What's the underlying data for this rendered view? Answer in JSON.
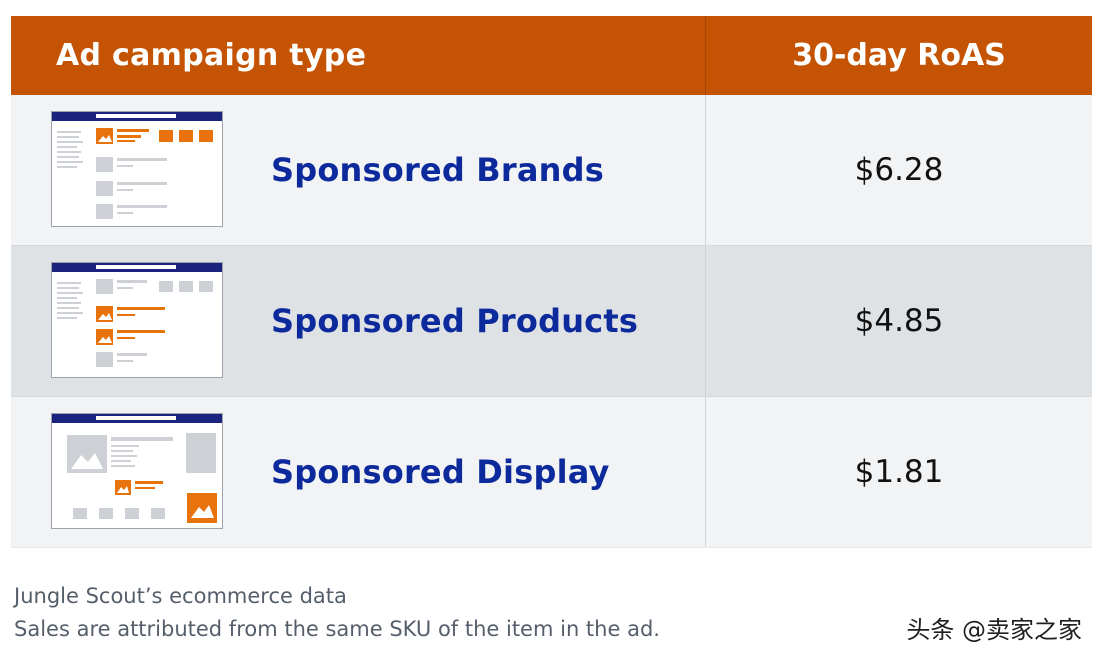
{
  "chart_data": {
    "type": "table",
    "columns": [
      "Ad campaign type",
      "30-day RoAS"
    ],
    "rows": [
      {
        "campaign": "Sponsored Brands",
        "roas": "$6.28",
        "value": 6.28
      },
      {
        "campaign": "Sponsored Products",
        "roas": "$4.85",
        "value": 4.85
      },
      {
        "campaign": "Sponsored Display",
        "roas": "$1.81",
        "value": 1.81
      }
    ]
  },
  "caption": {
    "line1": "Jungle Scout’s ecommerce data",
    "line2": "Sales are attributed from the same SKU of the item in the ad."
  },
  "watermark": "头条 @卖家之家",
  "colors": {
    "header_bg": "#c45404",
    "campaign_text": "#0d2a9c",
    "accent_orange": "#e8730c",
    "mock_nav": "#1a237e",
    "mock_gray": "#cdd0d4"
  }
}
